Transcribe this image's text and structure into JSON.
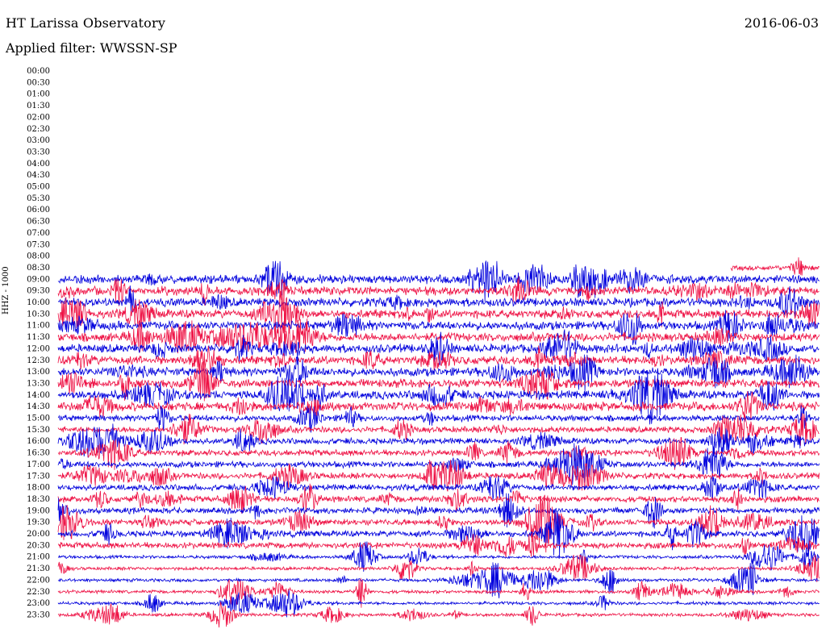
{
  "header": {
    "station": "HT Larissa Observatory",
    "date": "2016-06-03",
    "filter": "Applied filter: WWSSN-SP"
  },
  "channel_label": "HHZ - 1000",
  "colors": {
    "trace_a": "#0000dd",
    "trace_b": "#ee1144",
    "background": "#ffffff"
  },
  "chart_data": {
    "type": "line",
    "title": "HT Larissa Observatory",
    "subtitle": "Applied filter: WWSSN-SP",
    "ylabel": "HHZ - 1000",
    "y_tick_labels": [
      "00:00",
      "00:30",
      "01:00",
      "01:30",
      "02:00",
      "02:30",
      "03:00",
      "03:30",
      "04:00",
      "04:30",
      "05:00",
      "05:30",
      "06:00",
      "06:30",
      "07:00",
      "07:30",
      "08:00",
      "08:30",
      "09:00",
      "09:30",
      "10:00",
      "10:30",
      "11:00",
      "11:30",
      "12:00",
      "12:30",
      "13:00",
      "13:30",
      "14:00",
      "14:30",
      "15:00",
      "15:30",
      "16:00",
      "16:30",
      "17:00",
      "17:30",
      "18:00",
      "18:30",
      "19:00",
      "19:30",
      "20:00",
      "20:30",
      "21:00",
      "21:30",
      "22:00",
      "22:30",
      "23:00",
      "23:30"
    ],
    "trace_start": "08:30",
    "data_start": "09:00",
    "trace_colors_alternate": [
      "blue",
      "red"
    ],
    "grid": false
  }
}
